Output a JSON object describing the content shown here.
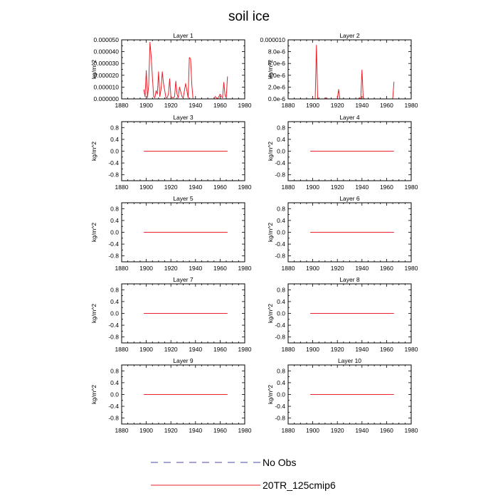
{
  "title": "soil ice",
  "legend": [
    {
      "label": "No Obs",
      "color": "#4a4aa8",
      "style": "dashed"
    },
    {
      "label": "20TR_125cmip6",
      "color": "#e8202a",
      "style": "solid"
    }
  ],
  "chart_data": [
    {
      "type": "line",
      "title": "Layer 1",
      "ylabel": "kg/m^2",
      "xlim": [
        1880,
        1980
      ],
      "ylim": [
        0,
        5e-05
      ],
      "xticks": [
        1880,
        1900,
        1920,
        1940,
        1960,
        1980
      ],
      "yticks": [
        0,
        1e-05,
        2e-05,
        3e-05,
        4e-05,
        5e-05
      ],
      "yticklabels": [
        "0.000000",
        "0.000010",
        "0.000020",
        "0.000030",
        "0.000040",
        "0.000050"
      ],
      "series": [
        {
          "name": "20TR_125cmip6",
          "color": "#e8202a",
          "x": [
            1898,
            1899,
            1900,
            1901,
            1902,
            1903,
            1904,
            1905,
            1906,
            1907,
            1908,
            1909,
            1910,
            1911,
            1912,
            1913,
            1914,
            1915,
            1916,
            1917,
            1918,
            1919,
            1920,
            1921,
            1922,
            1923,
            1924,
            1925,
            1926,
            1927,
            1928,
            1929,
            1930,
            1931,
            1932,
            1933,
            1934,
            1935,
            1936,
            1937,
            1938,
            1939,
            1940,
            1941,
            1942,
            1943,
            1944,
            1945,
            1946,
            1947,
            1948,
            1949,
            1950,
            1951,
            1952,
            1953,
            1954,
            1955,
            1956,
            1957,
            1958,
            1959,
            1960,
            1961,
            1962,
            1963,
            1964,
            1965,
            1966
          ],
          "y": [
            8e-06,
            2e-06,
            2.4e-05,
            1e-06,
            1.2e-05,
            4.8e-05,
            3.6e-05,
            1.8e-05,
            2e-06,
            1e-06,
            7e-06,
            4e-06,
            2.3e-05,
            2e-06,
            8e-06,
            2.3e-05,
            1.3e-05,
            7e-06,
            1e-06,
            1e-06,
            4e-06,
            1.7e-05,
            2e-06,
            1e-06,
            1e-06,
            2e-06,
            1.5e-05,
            4e-06,
            1e-06,
            1e-05,
            6e-06,
            2e-06,
            1e-06,
            7e-06,
            1.3e-05,
            7e-06,
            1e-06,
            3.5e-05,
            3.4e-05,
            1.2e-05,
            0,
            0,
            0,
            0,
            0,
            0,
            0,
            0,
            0,
            0,
            0,
            0,
            0,
            0,
            0,
            0,
            0,
            0,
            2e-06,
            1e-06,
            0,
            2e-06,
            4e-06,
            2e-06,
            1e-06,
            1.4e-05,
            3e-06,
            1e-06,
            1.9e-05
          ]
        }
      ]
    },
    {
      "type": "line",
      "title": "Layer 2",
      "ylabel": "kg/m^2",
      "xlim": [
        1880,
        1980
      ],
      "ylim": [
        0,
        1e-05
      ],
      "xticks": [
        1880,
        1900,
        1920,
        1940,
        1960,
        1980
      ],
      "yticks": [
        0,
        2e-06,
        4e-06,
        6e-06,
        8e-06,
        1e-05
      ],
      "yticklabels": [
        "0.0e-6",
        "2.0e-6",
        "4.0e-6",
        "6.0e-6",
        "8.0e-6",
        "0.000010"
      ],
      "series": [
        {
          "name": "20TR_125cmip6",
          "color": "#e8202a",
          "x": [
            1898,
            1899,
            1900,
            1901,
            1902,
            1903,
            1904,
            1905,
            1906,
            1907,
            1908,
            1909,
            1910,
            1911,
            1912,
            1913,
            1914,
            1915,
            1916,
            1917,
            1918,
            1919,
            1920,
            1921,
            1922,
            1923,
            1924,
            1925,
            1926,
            1927,
            1928,
            1929,
            1930,
            1931,
            1932,
            1933,
            1934,
            1935,
            1936,
            1937,
            1938,
            1939,
            1940,
            1941,
            1942,
            1943,
            1944,
            1945,
            1946,
            1947,
            1948,
            1949,
            1950,
            1951,
            1952,
            1953,
            1954,
            1955,
            1956,
            1957,
            1958,
            1959,
            1960,
            1961,
            1962,
            1963,
            1964,
            1965,
            1966
          ],
          "y": [
            0,
            0,
            1e-07,
            0,
            0,
            9.1e-06,
            1e-07,
            0,
            0,
            0,
            0,
            0,
            0,
            2e-07,
            0,
            0,
            0,
            0,
            0,
            0,
            0,
            0,
            0,
            1.6e-06,
            0,
            0,
            0,
            0,
            0,
            0,
            0,
            0,
            0,
            0,
            0,
            0,
            0,
            0,
            0,
            0,
            2e-07,
            0,
            4.9e-06,
            2e-07,
            0,
            0,
            0,
            0,
            0,
            0,
            0,
            0,
            0,
            0,
            0,
            0,
            0,
            0,
            0,
            0,
            0,
            0,
            0,
            0,
            0,
            0,
            0,
            0,
            2.9e-06
          ]
        }
      ]
    },
    {
      "type": "line",
      "title": "Layer 3",
      "ylabel": "kg/m^2",
      "xlim": [
        1880,
        1980
      ],
      "ylim": [
        -1,
        1
      ],
      "xticks": [
        1880,
        1900,
        1920,
        1940,
        1960,
        1980
      ],
      "yticks": [
        -0.8,
        -0.4,
        0,
        0.4,
        0.8
      ],
      "yticklabels": [
        "-0.8",
        "-0.4",
        "0.0",
        "0.4",
        "0.8"
      ],
      "series": [
        {
          "name": "20TR_125cmip6",
          "color": "#e8202a",
          "x": [
            1898,
            1966
          ],
          "y": [
            0,
            0
          ]
        }
      ]
    },
    {
      "type": "line",
      "title": "Layer 4",
      "ylabel": "kg/m^2",
      "xlim": [
        1880,
        1980
      ],
      "ylim": [
        -1,
        1
      ],
      "xticks": [
        1880,
        1900,
        1920,
        1940,
        1960,
        1980
      ],
      "yticks": [
        -0.8,
        -0.4,
        0,
        0.4,
        0.8
      ],
      "yticklabels": [
        "-0.8",
        "-0.4",
        "0.0",
        "0.4",
        "0.8"
      ],
      "series": [
        {
          "name": "20TR_125cmip6",
          "color": "#e8202a",
          "x": [
            1898,
            1966
          ],
          "y": [
            0,
            0
          ]
        }
      ]
    },
    {
      "type": "line",
      "title": "Layer 5",
      "ylabel": "kg/m^2",
      "xlim": [
        1880,
        1980
      ],
      "ylim": [
        -1,
        1
      ],
      "xticks": [
        1880,
        1900,
        1920,
        1940,
        1960,
        1980
      ],
      "yticks": [
        -0.8,
        -0.4,
        0,
        0.4,
        0.8
      ],
      "yticklabels": [
        "-0.8",
        "-0.4",
        "0.0",
        "0.4",
        "0.8"
      ],
      "series": [
        {
          "name": "20TR_125cmip6",
          "color": "#e8202a",
          "x": [
            1898,
            1966
          ],
          "y": [
            0,
            0
          ]
        }
      ]
    },
    {
      "type": "line",
      "title": "Layer 6",
      "ylabel": "kg/m^2",
      "xlim": [
        1880,
        1980
      ],
      "ylim": [
        -1,
        1
      ],
      "xticks": [
        1880,
        1900,
        1920,
        1940,
        1960,
        1980
      ],
      "yticks": [
        -0.8,
        -0.4,
        0,
        0.4,
        0.8
      ],
      "yticklabels": [
        "-0.8",
        "-0.4",
        "0.0",
        "0.4",
        "0.8"
      ],
      "series": [
        {
          "name": "20TR_125cmip6",
          "color": "#e8202a",
          "x": [
            1898,
            1966
          ],
          "y": [
            0,
            0
          ]
        }
      ]
    },
    {
      "type": "line",
      "title": "Layer 7",
      "ylabel": "kg/m^2",
      "xlim": [
        1880,
        1980
      ],
      "ylim": [
        -1,
        1
      ],
      "xticks": [
        1880,
        1900,
        1920,
        1940,
        1960,
        1980
      ],
      "yticks": [
        -0.8,
        -0.4,
        0,
        0.4,
        0.8
      ],
      "yticklabels": [
        "-0.8",
        "-0.4",
        "0.0",
        "0.4",
        "0.8"
      ],
      "series": [
        {
          "name": "20TR_125cmip6",
          "color": "#e8202a",
          "x": [
            1898,
            1966
          ],
          "y": [
            0,
            0
          ]
        }
      ]
    },
    {
      "type": "line",
      "title": "Layer 8",
      "ylabel": "kg/m^2",
      "xlim": [
        1880,
        1980
      ],
      "ylim": [
        -1,
        1
      ],
      "xticks": [
        1880,
        1900,
        1920,
        1940,
        1960,
        1980
      ],
      "yticks": [
        -0.8,
        -0.4,
        0,
        0.4,
        0.8
      ],
      "yticklabels": [
        "-0.8",
        "-0.4",
        "0.0",
        "0.4",
        "0.8"
      ],
      "series": [
        {
          "name": "20TR_125cmip6",
          "color": "#e8202a",
          "x": [
            1898,
            1966
          ],
          "y": [
            0,
            0
          ]
        }
      ]
    },
    {
      "type": "line",
      "title": "Layer 9",
      "ylabel": "kg/m^2",
      "xlim": [
        1880,
        1980
      ],
      "ylim": [
        -1,
        1
      ],
      "xticks": [
        1880,
        1900,
        1920,
        1940,
        1960,
        1980
      ],
      "yticks": [
        -0.8,
        -0.4,
        0,
        0.4,
        0.8
      ],
      "yticklabels": [
        "-0.8",
        "-0.4",
        "0.0",
        "0.4",
        "0.8"
      ],
      "series": [
        {
          "name": "20TR_125cmip6",
          "color": "#e8202a",
          "x": [
            1898,
            1966
          ],
          "y": [
            0,
            0
          ]
        }
      ]
    },
    {
      "type": "line",
      "title": "Layer 10",
      "ylabel": "kg/m^2",
      "xlim": [
        1880,
        1980
      ],
      "ylim": [
        -1,
        1
      ],
      "xticks": [
        1880,
        1900,
        1920,
        1940,
        1960,
        1980
      ],
      "yticks": [
        -0.8,
        -0.4,
        0,
        0.4,
        0.8
      ],
      "yticklabels": [
        "-0.8",
        "-0.4",
        "0.0",
        "0.4",
        "0.8"
      ],
      "series": [
        {
          "name": "20TR_125cmip6",
          "color": "#e8202a",
          "x": [
            1898,
            1966
          ],
          "y": [
            0,
            0
          ]
        }
      ]
    }
  ]
}
